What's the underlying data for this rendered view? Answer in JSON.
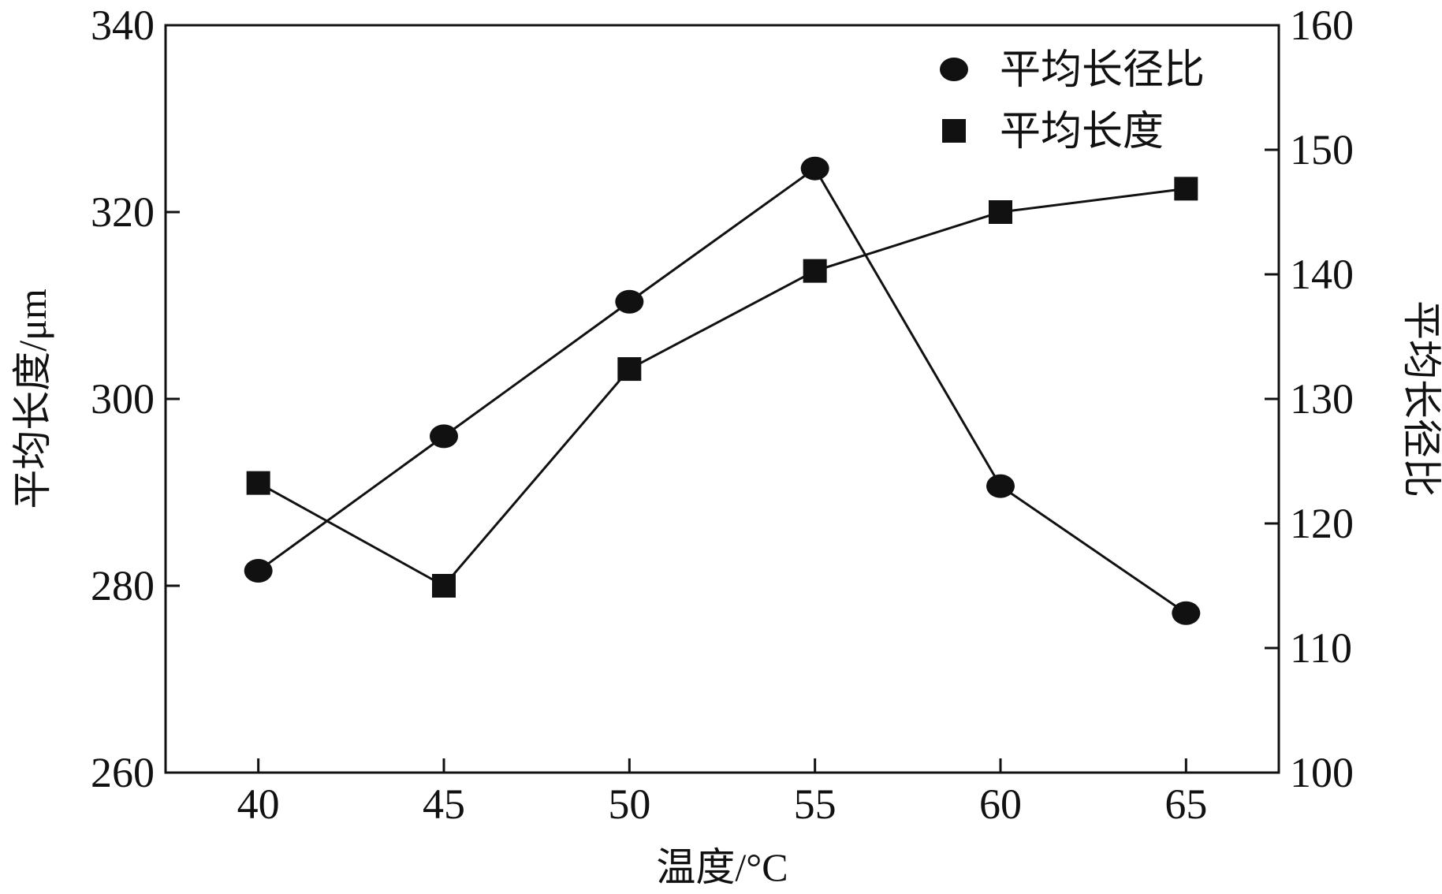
{
  "chart_data": {
    "type": "line",
    "title": "",
    "x": [
      40,
      45,
      50,
      55,
      60,
      65
    ],
    "xlabel": "温度/°C",
    "ylabel_left": "平均长度/μm",
    "ylabel_right": "平均长径比",
    "x_ticks": [
      "40",
      "45",
      "50",
      "55",
      "60",
      "65"
    ],
    "y_left_ticks": [
      "260",
      "280",
      "300",
      "320",
      "340"
    ],
    "y_right_ticks": [
      "100",
      "110",
      "120",
      "130",
      "140",
      "150",
      "160"
    ],
    "xlim": [
      37.5,
      67.5
    ],
    "ylim_left": [
      260,
      340
    ],
    "ylim_right": [
      100,
      160
    ],
    "grid": false,
    "legend_position": "top-right",
    "series": [
      {
        "name": "平均长径比",
        "marker": "circle",
        "axis": "right",
        "values": [
          116.2,
          127.0,
          137.8,
          148.5,
          123.0,
          112.8
        ],
        "color": "#111111"
      },
      {
        "name": "平均长度",
        "marker": "square",
        "axis": "left",
        "values": [
          291,
          280,
          303.2,
          313.7,
          320,
          322.5
        ],
        "color": "#111111"
      }
    ]
  }
}
